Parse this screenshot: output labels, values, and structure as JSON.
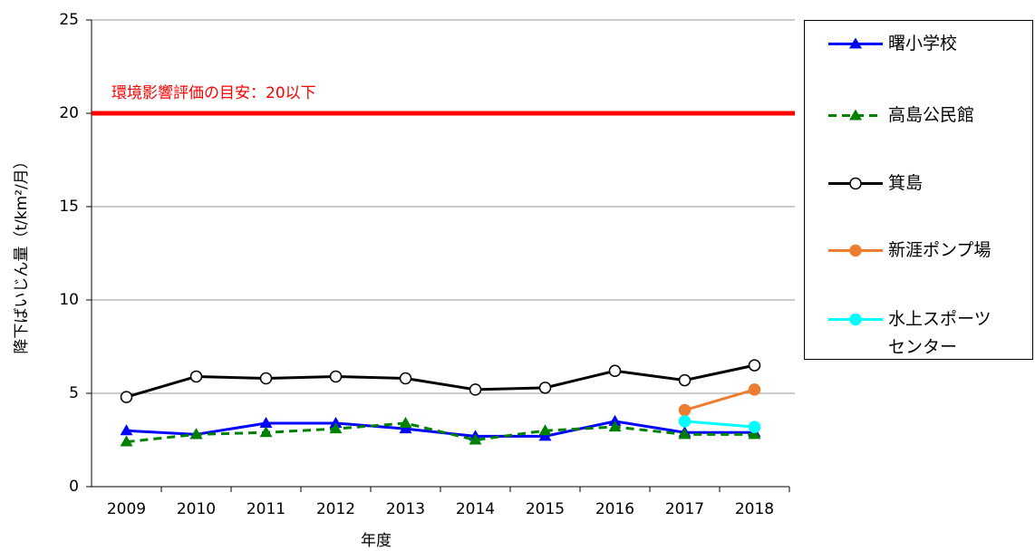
{
  "chart_data": {
    "type": "line",
    "xlabel": "年度",
    "ylabel": "降下ばいじん量（t/km²/月）",
    "categories": [
      "2009",
      "2010",
      "2011",
      "2012",
      "2013",
      "2014",
      "2015",
      "2016",
      "2017",
      "2018"
    ],
    "ylim": [
      0,
      25
    ],
    "yticks": [
      0,
      5,
      10,
      15,
      20,
      25
    ],
    "grid": true,
    "threshold": {
      "value": 20,
      "label": "環境影響評価の目安：20以下",
      "color": "#ff0000"
    },
    "legend": "right",
    "series": [
      {
        "name": "曙小学校",
        "color": "#0000ff",
        "marker": "triangle",
        "dashed": false,
        "values": [
          3.0,
          2.8,
          3.4,
          3.4,
          3.1,
          2.7,
          2.7,
          3.5,
          2.9,
          2.9
        ]
      },
      {
        "name": "高島公民館",
        "color": "#008000",
        "marker": "triangle",
        "dashed": true,
        "values": [
          2.4,
          2.8,
          2.9,
          3.1,
          3.4,
          2.5,
          3.0,
          3.2,
          2.8,
          2.8
        ]
      },
      {
        "name": "箕島",
        "color": "#000000",
        "marker": "open-circle",
        "dashed": false,
        "values": [
          4.8,
          5.9,
          5.8,
          5.9,
          5.8,
          5.2,
          5.3,
          6.2,
          5.7,
          6.5
        ]
      },
      {
        "name": "新涯ポンプ場",
        "color": "#ed7d31",
        "marker": "circle",
        "dashed": false,
        "values": [
          null,
          null,
          null,
          null,
          null,
          null,
          null,
          null,
          4.1,
          5.2
        ]
      },
      {
        "name": "水上スポーツセンター",
        "color": "#00ffff",
        "marker": "circle",
        "dashed": false,
        "values": [
          null,
          null,
          null,
          null,
          null,
          null,
          null,
          null,
          3.5,
          3.2
        ]
      }
    ]
  }
}
